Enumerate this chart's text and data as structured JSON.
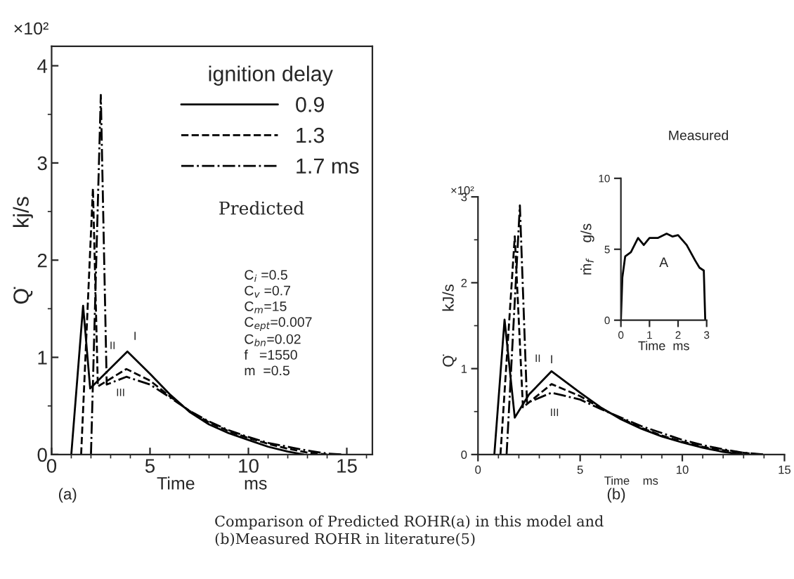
{
  "chart_data": [
    {
      "type": "line",
      "xlabel": "Time          ms",
      "ylabel": "Q̇          kj/s",
      "legend_title": "ignition delay",
      "legend": "top right",
      "xlim": [
        0,
        16.3
      ],
      "ylim": [
        0,
        4.2
      ],
      "xticks": [
        0,
        5,
        10,
        15
      ],
      "yticks": [
        0,
        1,
        2,
        3,
        4
      ],
      "series": [
        {
          "name": "0.9",
          "color": "#000000",
          "line_style": "solid",
          "x": [
            1.0,
            1.6,
            1.96,
            3.85,
            5,
            6,
            7,
            8,
            9,
            10,
            11,
            12,
            12.8
          ],
          "values": [
            0,
            1.53,
            0.68,
            1.06,
            0.83,
            0.62,
            0.44,
            0.31,
            0.22,
            0.15,
            0.08,
            0.03,
            0
          ]
        },
        {
          "name": "1.3",
          "color": "#000000",
          "line_style": "dashed",
          "x": [
            1.5,
            2.1,
            2.35,
            3.8,
            5,
            6,
            7,
            8,
            9,
            10,
            11,
            12,
            13,
            14
          ],
          "values": [
            0,
            2.74,
            0.7,
            0.88,
            0.76,
            0.6,
            0.45,
            0.33,
            0.24,
            0.17,
            0.11,
            0.06,
            0.02,
            0
          ]
        },
        {
          "name": "1.7 ms",
          "color": "#000000",
          "line_style": "dashdot",
          "x": [
            2.0,
            2.5,
            2.8,
            3.8,
            5,
            6,
            7,
            8,
            9,
            10,
            11,
            12,
            13,
            14,
            14.8
          ],
          "values": [
            0,
            3.7,
            0.72,
            0.8,
            0.72,
            0.59,
            0.45,
            0.34,
            0.25,
            0.18,
            0.12,
            0.08,
            0.04,
            0.01,
            0
          ]
        }
      ],
      "annotations": [
        "I",
        "II",
        "III",
        "×10²",
        "Predicted",
        "C$_{i}$ =0.5\nC$_{v}$ =0.7\nC$_{m}$=15\nC$_{ept}$=0.007\nC$_{bn}$=0.02\nf   =1550\nm  =0.5",
        "(a)",
        "Comparison of Predicted ROHR(a) in this model and\n(b)Measured ROHR in literature(5)"
      ]
    },
    {
      "type": "line",
      "xlabel": "Time    ms",
      "ylabel": "Q̇          kJ/s",
      "xlim": [
        0,
        15
      ],
      "ylim": [
        0,
        3
      ],
      "xticks": [
        0,
        5,
        10,
        15
      ],
      "yticks": [
        0,
        1,
        2,
        3
      ],
      "series": [
        {
          "color": "#000000",
          "line_style": "solid",
          "x": [
            0.8,
            1.3,
            1.8,
            2.5,
            3.6,
            5,
            6,
            7,
            8,
            9,
            10,
            11,
            12,
            13
          ],
          "values": [
            0,
            1.57,
            0.43,
            0.7,
            0.97,
            0.72,
            0.55,
            0.41,
            0.3,
            0.21,
            0.14,
            0.08,
            0.03,
            0
          ]
        },
        {
          "color": "#000000",
          "line_style": "dashed",
          "x": [
            1.1,
            1.8,
            2.2,
            3.6,
            5,
            6,
            7,
            8,
            9,
            10,
            11,
            12,
            13,
            13.8
          ],
          "values": [
            0,
            2.54,
            0.55,
            0.82,
            0.68,
            0.54,
            0.42,
            0.31,
            0.22,
            0.15,
            0.09,
            0.05,
            0.02,
            0
          ]
        },
        {
          "color": "#000000",
          "line_style": "dashdot",
          "x": [
            1.4,
            2.05,
            2.4,
            3.6,
            5,
            6,
            7,
            8,
            9,
            10,
            11,
            12,
            13,
            14
          ],
          "values": [
            0,
            2.9,
            0.6,
            0.72,
            0.64,
            0.53,
            0.43,
            0.33,
            0.25,
            0.17,
            0.11,
            0.06,
            0.02,
            0
          ]
        }
      ],
      "annotations": [
        "I",
        "II",
        "III",
        "×10²",
        "(b)"
      ]
    },
    {
      "type": "line",
      "xlabel": "Time  ms",
      "ylabel": "ṁ$_{f}$    g/s",
      "xlim": [
        0,
        3
      ],
      "ylim": [
        0,
        10
      ],
      "xticks": [
        0,
        1,
        2,
        3
      ],
      "yticks": [
        0,
        5,
        10
      ],
      "series": [
        {
          "color": "#000000",
          "line_style": "solid",
          "x": [
            0,
            0.05,
            0.15,
            0.35,
            0.6,
            0.8,
            1.0,
            1.3,
            1.6,
            1.8,
            2.0,
            2.3,
            2.6,
            2.75,
            2.9,
            2.95
          ],
          "values": [
            0,
            3,
            4.5,
            4.8,
            5.8,
            5.3,
            5.8,
            5.8,
            6.1,
            5.9,
            6.0,
            5.3,
            4.2,
            3.7,
            3.5,
            0
          ]
        }
      ],
      "annotations": [
        "Measured",
        "A"
      ]
    }
  ]
}
